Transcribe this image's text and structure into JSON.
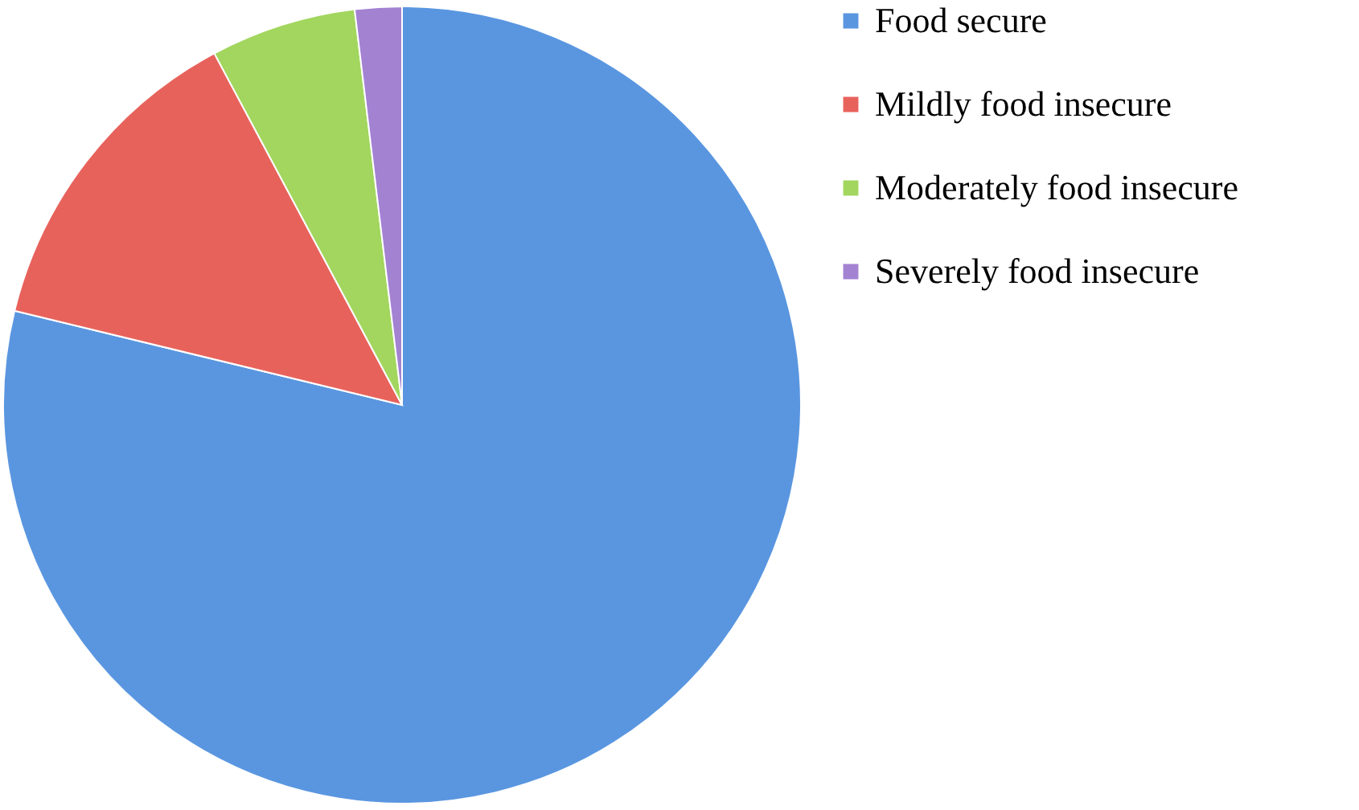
{
  "chart_data": {
    "type": "pie",
    "categories": [
      "Food secure",
      "Mildly food insecure",
      "Moderately food insecure",
      "Severely food insecure"
    ],
    "values": [
      78.8,
      13.4,
      5.9,
      1.9
    ],
    "colors": [
      "#5a96e0",
      "#e8625c",
      "#a2d65e",
      "#a382d2"
    ],
    "legend": "right"
  }
}
